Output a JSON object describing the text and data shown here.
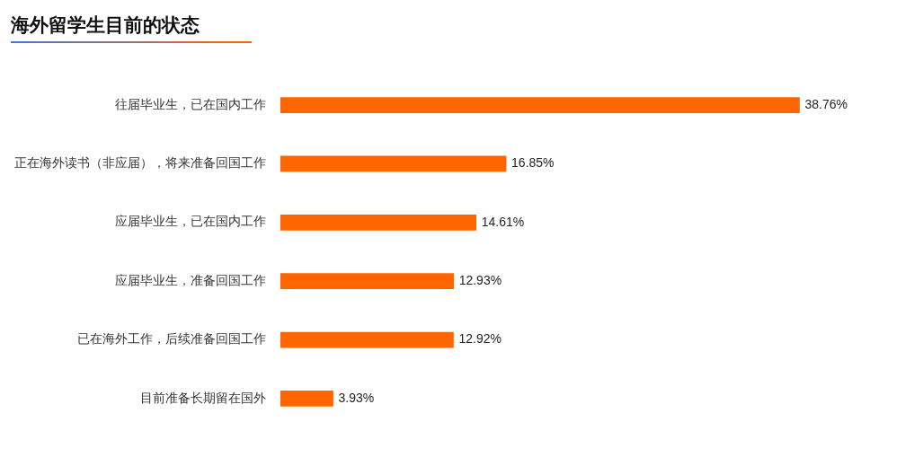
{
  "chart_data": {
    "type": "bar",
    "orientation": "horizontal",
    "title": "海外留学生目前的状态",
    "categories": [
      "往届毕业生，已在国内工作",
      "正在海外读书（非应届），将来准备回国工作",
      "应届毕业生，已在国内工作",
      "应届毕业生，准备回国工作",
      "已在海外工作，后续准备回国工作",
      "目前准备长期留在国外"
    ],
    "values": [
      38.76,
      16.85,
      14.61,
      12.93,
      12.92,
      3.93
    ],
    "value_labels": [
      "38.76%",
      "16.85%",
      "14.61%",
      "12.93%",
      "12.92%",
      "3.93%"
    ],
    "color": "#ff6600"
  }
}
